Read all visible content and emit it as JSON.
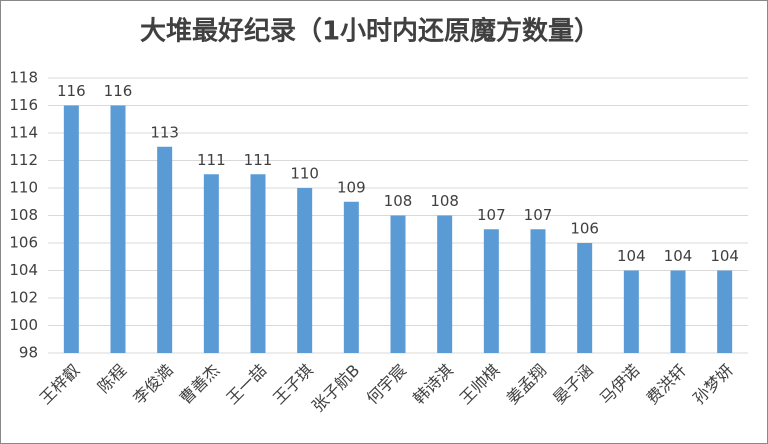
{
  "chart_data": {
    "type": "bar",
    "title": "大堆最好纪录（1小时内还原魔方数量）",
    "categories": [
      "王梓叡",
      "陈程",
      "李俊澔",
      "曹善杰",
      "王一喆",
      "王子琪",
      "张子航B",
      "何宇宸",
      "韩诗淇",
      "王帅棋",
      "姜孟翔",
      "晏子涵",
      "马伊诺",
      "费洪轩",
      "孙梦妍"
    ],
    "values": [
      116,
      116,
      113,
      111,
      111,
      110,
      109,
      108,
      108,
      107,
      107,
      106,
      104,
      104,
      104
    ],
    "color": "#5b9bd5",
    "ylim": [
      98,
      118
    ],
    "yticks": [
      98,
      100,
      102,
      104,
      106,
      108,
      110,
      112,
      114,
      116,
      118
    ],
    "grid": true
  }
}
